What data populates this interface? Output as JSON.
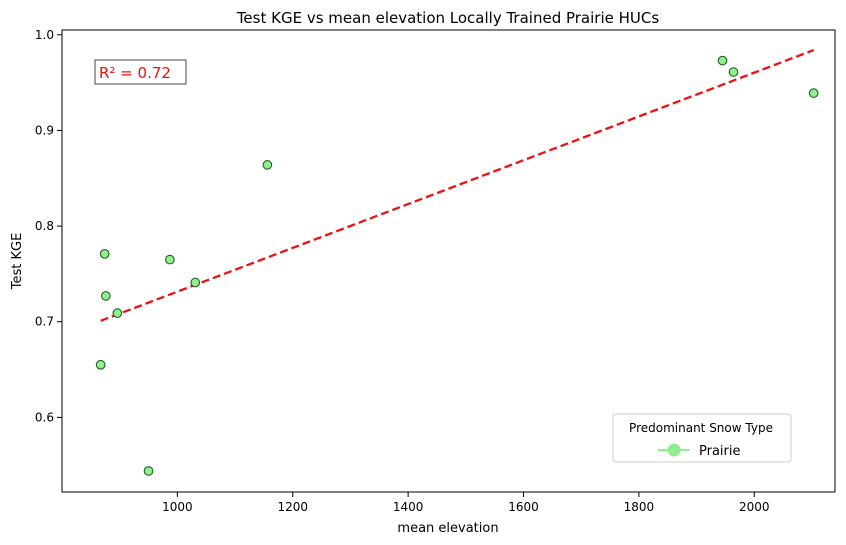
{
  "chart_data": {
    "type": "scatter",
    "title": "Test KGE vs mean elevation Locally Trained Prairie HUCs",
    "xlabel": "mean elevation",
    "ylabel": "Test KGE",
    "xlim": [
      800,
      2140
    ],
    "ylim": [
      0.522,
      1.005
    ],
    "xticks": [
      "1000",
      "1200",
      "1400",
      "1600",
      "1800",
      "2000"
    ],
    "yticks": [
      "0.6",
      "0.7",
      "0.8",
      "0.9",
      "1.0"
    ],
    "points": [
      {
        "x": 867,
        "y": 0.655
      },
      {
        "x": 874,
        "y": 0.771
      },
      {
        "x": 876,
        "y": 0.727
      },
      {
        "x": 896,
        "y": 0.709
      },
      {
        "x": 950,
        "y": 0.544
      },
      {
        "x": 987,
        "y": 0.765
      },
      {
        "x": 1031,
        "y": 0.741
      },
      {
        "x": 1156,
        "y": 0.864
      },
      {
        "x": 1945,
        "y": 0.973
      },
      {
        "x": 1964,
        "y": 0.961
      },
      {
        "x": 2103,
        "y": 0.939
      }
    ],
    "trend_line": {
      "x": [
        867,
        2103
      ],
      "y": [
        0.701,
        0.984
      ],
      "color": "#ee1111"
    },
    "annotation": "R² = 0.72",
    "legend": {
      "title": "Predominant Snow Type",
      "entries": [
        "Prairie"
      ],
      "placement": "lower-right"
    },
    "colors": {
      "marker_fill": "#90ee90",
      "marker_edge": "#1f5f1f",
      "annotation": "#ee1111",
      "legend_marker": "#90ee90"
    }
  }
}
